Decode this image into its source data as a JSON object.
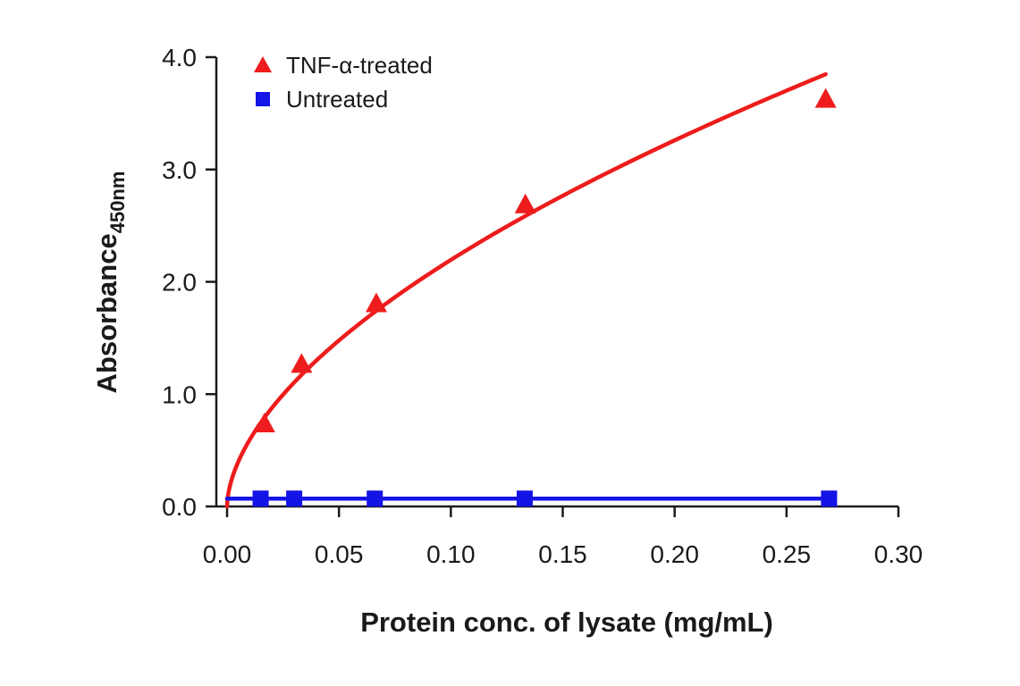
{
  "chart_data": {
    "type": "scatter",
    "title": "",
    "xlabel": "Protein conc. of lysate (mg/mL)",
    "ylabel": "Absorbance",
    "ylabel_subscript": "450nm",
    "xlim": [
      0,
      0.3
    ],
    "ylim": [
      0,
      4.0
    ],
    "x_ticks": [
      0,
      0.05,
      0.1,
      0.15,
      0.2,
      0.25,
      0.3
    ],
    "x_tick_labels": [
      "0.00",
      "0.05",
      "0.10",
      "0.15",
      "0.20",
      "0.25",
      "0.30"
    ],
    "y_ticks": [
      0,
      1,
      2,
      3,
      4
    ],
    "y_tick_labels": [
      "0.0",
      "1.0",
      "2.0",
      "3.0",
      "4.0"
    ],
    "legend_position": "top-left",
    "grid": false,
    "series": [
      {
        "name": "TNF-α-treated",
        "color": "#ee1c1c",
        "marker": "triangle",
        "fit": "curve",
        "x": [
          0.0167,
          0.0333,
          0.0667,
          0.1333,
          0.2675
        ],
        "y": [
          0.73,
          1.26,
          1.8,
          2.68,
          3.62
        ]
      },
      {
        "name": "Untreated",
        "color": "#1414e6",
        "marker": "square",
        "fit": "flat",
        "x": [
          0.015,
          0.03,
          0.066,
          0.133,
          0.269
        ],
        "y": [
          0.07,
          0.07,
          0.07,
          0.07,
          0.07
        ]
      }
    ]
  }
}
